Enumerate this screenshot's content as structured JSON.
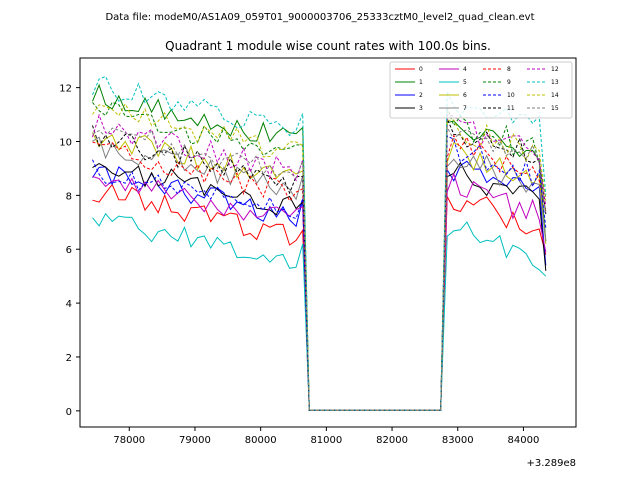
{
  "header": {
    "suptitle": "Data file: modeM0/AS1A09_059T01_9000003706_25333cztM0_level2_quad_clean.evt"
  },
  "chart_data": {
    "type": "line",
    "title": "Quadrant 1 module wise count rates with 100.0s bins.",
    "xlabel": "",
    "ylabel": "",
    "x_offset_label": "+3.289e8",
    "xlim": [
      77250,
      84800
    ],
    "ylim": [
      -0.6,
      13.1
    ],
    "xticks": [
      78000,
      79000,
      80000,
      81000,
      82000,
      83000,
      84000
    ],
    "yticks": [
      0,
      2,
      4,
      6,
      8,
      10,
      12
    ],
    "x_segments": [
      {
        "start": 77440,
        "step": 100,
        "count": 33
      },
      {
        "start": 80740,
        "step": 100,
        "count": 21
      },
      {
        "start": 82840,
        "step": 100,
        "count": 16
      }
    ],
    "legend_position": "top-right",
    "series": [
      {
        "name": "0",
        "color": "#ff0000",
        "style": "solid",
        "level1": 7.3,
        "level2": 7.4,
        "end": 5.8,
        "seed": 1
      },
      {
        "name": "1",
        "color": "#008000",
        "style": "solid",
        "level1": 10.9,
        "level2": 10.2,
        "end": 6.3,
        "seed": 2
      },
      {
        "name": "2",
        "color": "#0000ff",
        "style": "solid",
        "level1": 8.0,
        "level2": 8.5,
        "end": 5.4,
        "seed": 3
      },
      {
        "name": "3",
        "color": "#000000",
        "style": "solid",
        "level1": 8.3,
        "level2": 8.3,
        "end": 5.2,
        "seed": 4
      },
      {
        "name": "4",
        "color": "#bf00bf",
        "style": "solid",
        "level1": 7.9,
        "level2": 7.8,
        "end": 5.9,
        "seed": 5
      },
      {
        "name": "5",
        "color": "#00bfbf",
        "style": "solid",
        "level1": 6.3,
        "level2": 6.2,
        "end": 5.0,
        "seed": 6
      },
      {
        "name": "6",
        "color": "#bfbf00",
        "style": "solid",
        "level1": 9.4,
        "level2": 9.0,
        "end": 6.2,
        "seed": 7
      },
      {
        "name": "7",
        "color": "#808080",
        "style": "solid",
        "level1": 9.0,
        "level2": 8.9,
        "end": 6.3,
        "seed": 8
      },
      {
        "name": "8",
        "color": "#ff0000",
        "style": "dashed",
        "level1": 8.9,
        "level2": 9.3,
        "end": 7.4,
        "seed": 9
      },
      {
        "name": "9",
        "color": "#008000",
        "style": "dashed",
        "level1": 10.3,
        "level2": 10.2,
        "end": 7.9,
        "seed": 10
      },
      {
        "name": "10",
        "color": "#0000ff",
        "style": "dashed",
        "level1": 8.1,
        "level2": 9.2,
        "end": 6.8,
        "seed": 11
      },
      {
        "name": "11",
        "color": "#000000",
        "style": "dashed",
        "level1": 9.3,
        "level2": 9.9,
        "end": 7.3,
        "seed": 12
      },
      {
        "name": "12",
        "color": "#bf00bf",
        "style": "dashed",
        "level1": 9.7,
        "level2": 10.1,
        "end": 7.6,
        "seed": 13
      },
      {
        "name": "13",
        "color": "#00bfbf",
        "style": "dashed",
        "level1": 11.2,
        "level2": 11.0,
        "end": 8.0,
        "seed": 14
      },
      {
        "name": "14",
        "color": "#bfbf00",
        "style": "dashed",
        "level1": 10.4,
        "level2": 10.0,
        "end": 7.8,
        "seed": 15
      },
      {
        "name": "15",
        "color": "#808080",
        "style": "dashed",
        "level1": 9.6,
        "level2": 9.8,
        "end": 7.3,
        "seed": 16
      }
    ]
  }
}
